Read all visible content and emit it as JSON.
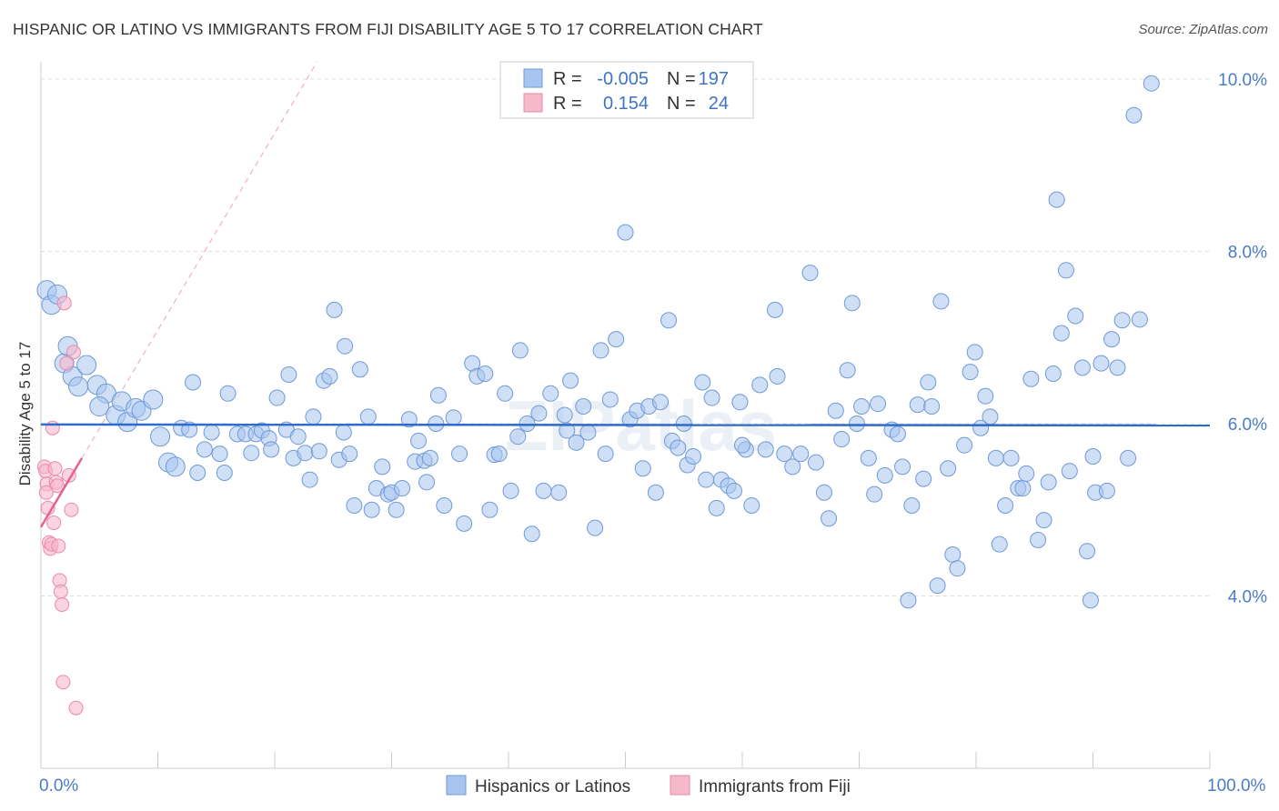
{
  "title": "HISPANIC OR LATINO VS IMMIGRANTS FROM FIJI DISABILITY AGE 5 TO 17 CORRELATION CHART",
  "source": "Source: ZipAtlas.com",
  "watermark": "ZIPatlas",
  "colors": {
    "blue": "#a7c5ee",
    "blue_stroke": "#6f9ad6",
    "blue_line": "#2f6cc9",
    "pink": "#f6b8cb",
    "pink_stroke": "#e98aa9",
    "pink_line": "#e8628f"
  },
  "legend": {
    "rows": [
      {
        "r_label": "R =",
        "r_value": "-0.005",
        "n_label": "N =",
        "n_value": "197"
      },
      {
        "r_label": "R =",
        "r_value": "0.154",
        "n_label": "N =",
        "n_value": "24"
      }
    ]
  },
  "bottom_legend": [
    "Hispanics or Latinos",
    "Immigrants from Fiji"
  ],
  "chart_data": {
    "type": "scatter",
    "xlabel": "",
    "ylabel": "Disability Age 5 to 17",
    "xlim": [
      0,
      100
    ],
    "ylim": [
      2.0,
      10.2
    ],
    "x_tick_labels": [
      "0.0%",
      "100.0%"
    ],
    "y_ticks": [
      4.0,
      6.0,
      8.0,
      10.0
    ],
    "y_tick_labels": [
      "4.0%",
      "6.0%",
      "8.0%",
      "10.0%"
    ],
    "grid": true,
    "series": [
      {
        "name": "Hispanics or Latinos",
        "trend": {
          "x": [
            0,
            100
          ],
          "y": [
            5.99,
            5.98
          ]
        },
        "points": [
          [
            0.5,
            7.55
          ],
          [
            0.9,
            7.38
          ],
          [
            1.4,
            7.5
          ],
          [
            2.0,
            6.7
          ],
          [
            2.3,
            6.9
          ],
          [
            2.7,
            6.55
          ],
          [
            3.2,
            6.43
          ],
          [
            3.9,
            6.68
          ],
          [
            4.8,
            6.45
          ],
          [
            5.6,
            6.35
          ],
          [
            5.0,
            6.2
          ],
          [
            6.4,
            6.1
          ],
          [
            6.9,
            6.26
          ],
          [
            7.4,
            6.02
          ],
          [
            8.1,
            6.18
          ],
          [
            8.6,
            6.15
          ],
          [
            9.6,
            6.28
          ],
          [
            10.2,
            5.85
          ],
          [
            10.9,
            5.55
          ],
          [
            11.5,
            5.5
          ],
          [
            12.0,
            5.95
          ],
          [
            12.7,
            5.93
          ],
          [
            13.0,
            6.48
          ],
          [
            13.4,
            5.43
          ],
          [
            14.0,
            5.7
          ],
          [
            14.6,
            5.9
          ],
          [
            15.3,
            5.65
          ],
          [
            15.7,
            5.43
          ],
          [
            16.0,
            6.35
          ],
          [
            16.8,
            5.88
          ],
          [
            17.5,
            5.88
          ],
          [
            18.0,
            5.66
          ],
          [
            18.4,
            5.88
          ],
          [
            18.9,
            5.92
          ],
          [
            19.5,
            5.83
          ],
          [
            19.7,
            5.7
          ],
          [
            20.2,
            6.3
          ],
          [
            21.0,
            5.93
          ],
          [
            21.2,
            6.57
          ],
          [
            21.6,
            5.6
          ],
          [
            22.0,
            5.85
          ],
          [
            22.6,
            5.66
          ],
          [
            23.0,
            5.35
          ],
          [
            23.3,
            6.08
          ],
          [
            23.8,
            5.68
          ],
          [
            24.2,
            6.5
          ],
          [
            24.7,
            6.55
          ],
          [
            25.1,
            7.32
          ],
          [
            25.5,
            5.58
          ],
          [
            25.9,
            5.9
          ],
          [
            26.4,
            5.65
          ],
          [
            26.8,
            5.05
          ],
          [
            27.3,
            6.63
          ],
          [
            28.0,
            6.08
          ],
          [
            28.3,
            5.0
          ],
          [
            28.7,
            5.25
          ],
          [
            29.2,
            5.5
          ],
          [
            29.7,
            5.18
          ],
          [
            30.0,
            5.2
          ],
          [
            30.4,
            5.0
          ],
          [
            30.9,
            5.25
          ],
          [
            31.5,
            6.05
          ],
          [
            32.0,
            5.56
          ],
          [
            32.3,
            5.8
          ],
          [
            32.8,
            5.57
          ],
          [
            33.3,
            5.6
          ],
          [
            33.8,
            6.0
          ],
          [
            34.0,
            6.33
          ],
          [
            34.5,
            5.05
          ],
          [
            35.3,
            6.07
          ],
          [
            35.8,
            5.65
          ],
          [
            36.2,
            4.84
          ],
          [
            36.9,
            6.7
          ],
          [
            37.3,
            6.55
          ],
          [
            38.0,
            6.58
          ],
          [
            38.4,
            5.0
          ],
          [
            38.8,
            5.64
          ],
          [
            39.2,
            5.65
          ],
          [
            39.7,
            6.35
          ],
          [
            40.2,
            5.22
          ],
          [
            40.8,
            5.85
          ],
          [
            41.0,
            6.85
          ],
          [
            41.6,
            6.0
          ],
          [
            42.0,
            4.72
          ],
          [
            42.6,
            6.12
          ],
          [
            43.0,
            5.22
          ],
          [
            43.6,
            6.35
          ],
          [
            44.3,
            5.2
          ],
          [
            44.8,
            6.1
          ],
          [
            45.3,
            6.5
          ],
          [
            45.8,
            5.78
          ],
          [
            46.4,
            6.2
          ],
          [
            46.8,
            5.9
          ],
          [
            47.4,
            4.79
          ],
          [
            47.9,
            6.85
          ],
          [
            48.3,
            5.65
          ],
          [
            48.7,
            6.28
          ],
          [
            49.2,
            6.98
          ],
          [
            50.0,
            8.22
          ],
          [
            50.4,
            6.05
          ],
          [
            51.0,
            6.15
          ],
          [
            51.5,
            5.48
          ],
          [
            52.0,
            6.2
          ],
          [
            52.6,
            5.2
          ],
          [
            53.0,
            6.25
          ],
          [
            53.7,
            7.2
          ],
          [
            54.0,
            5.8
          ],
          [
            54.5,
            5.72
          ],
          [
            55.0,
            6.0
          ],
          [
            55.3,
            5.52
          ],
          [
            55.8,
            5.62
          ],
          [
            56.6,
            6.48
          ],
          [
            56.9,
            5.35
          ],
          [
            57.4,
            6.3
          ],
          [
            57.8,
            5.02
          ],
          [
            58.2,
            5.35
          ],
          [
            58.8,
            5.28
          ],
          [
            59.3,
            5.22
          ],
          [
            59.8,
            6.25
          ],
          [
            60.3,
            5.7
          ],
          [
            60.8,
            5.05
          ],
          [
            61.5,
            6.45
          ],
          [
            62.0,
            5.7
          ],
          [
            62.8,
            7.32
          ],
          [
            63.0,
            6.55
          ],
          [
            63.6,
            5.65
          ],
          [
            64.3,
            5.5
          ],
          [
            65.0,
            5.65
          ],
          [
            65.8,
            7.75
          ],
          [
            66.3,
            5.55
          ],
          [
            67.0,
            5.2
          ],
          [
            67.4,
            4.9
          ],
          [
            68.0,
            6.15
          ],
          [
            68.5,
            5.82
          ],
          [
            69.0,
            6.62
          ],
          [
            69.4,
            7.4
          ],
          [
            69.8,
            6.0
          ],
          [
            70.2,
            6.2
          ],
          [
            70.8,
            5.6
          ],
          [
            71.3,
            5.18
          ],
          [
            71.6,
            6.23
          ],
          [
            72.2,
            5.4
          ],
          [
            72.8,
            5.93
          ],
          [
            73.3,
            5.88
          ],
          [
            73.7,
            5.5
          ],
          [
            74.2,
            3.95
          ],
          [
            74.5,
            5.05
          ],
          [
            75.0,
            6.22
          ],
          [
            75.5,
            5.36
          ],
          [
            75.9,
            6.48
          ],
          [
            76.2,
            6.2
          ],
          [
            76.7,
            4.12
          ],
          [
            77.0,
            7.42
          ],
          [
            77.6,
            5.48
          ],
          [
            78.0,
            4.48
          ],
          [
            78.4,
            4.32
          ],
          [
            79.0,
            5.75
          ],
          [
            79.5,
            6.6
          ],
          [
            79.9,
            6.83
          ],
          [
            80.4,
            5.95
          ],
          [
            80.8,
            6.32
          ],
          [
            81.2,
            6.08
          ],
          [
            81.7,
            5.6
          ],
          [
            82.0,
            4.6
          ],
          [
            82.5,
            5.05
          ],
          [
            83.0,
            5.6
          ],
          [
            83.6,
            5.25
          ],
          [
            84.0,
            5.25
          ],
          [
            84.3,
            5.42
          ],
          [
            84.7,
            6.52
          ],
          [
            85.3,
            4.65
          ],
          [
            85.8,
            4.88
          ],
          [
            86.2,
            5.32
          ],
          [
            86.6,
            6.58
          ],
          [
            86.9,
            8.6
          ],
          [
            87.3,
            7.05
          ],
          [
            87.7,
            7.78
          ],
          [
            88.0,
            5.45
          ],
          [
            88.5,
            7.25
          ],
          [
            89.1,
            6.65
          ],
          [
            89.5,
            4.52
          ],
          [
            89.8,
            3.95
          ],
          [
            90.2,
            5.2
          ],
          [
            90.7,
            6.7
          ],
          [
            91.2,
            5.22
          ],
          [
            91.6,
            6.98
          ],
          [
            92.1,
            6.65
          ],
          [
            92.5,
            7.2
          ],
          [
            93.0,
            5.6
          ],
          [
            93.5,
            9.58
          ],
          [
            94.0,
            7.21
          ],
          [
            95.0,
            9.95
          ],
          [
            90.0,
            5.62
          ],
          [
            26.0,
            6.9
          ],
          [
            60.0,
            5.75
          ],
          [
            45.0,
            5.92
          ],
          [
            33.0,
            5.32
          ]
        ]
      },
      {
        "name": "Immigrants from Fiji",
        "trend": {
          "x": [
            0,
            3.5
          ],
          "y": [
            4.8,
            5.6
          ]
        },
        "points": [
          [
            0.3,
            5.5
          ],
          [
            0.4,
            5.45
          ],
          [
            0.5,
            5.3
          ],
          [
            0.6,
            5.02
          ],
          [
            0.7,
            4.62
          ],
          [
            0.8,
            4.55
          ],
          [
            0.9,
            4.6
          ],
          [
            1.0,
            5.95
          ],
          [
            1.1,
            4.85
          ],
          [
            1.2,
            5.48
          ],
          [
            1.3,
            5.32
          ],
          [
            1.4,
            5.28
          ],
          [
            1.5,
            4.58
          ],
          [
            1.6,
            4.18
          ],
          [
            1.7,
            4.05
          ],
          [
            1.8,
            3.9
          ],
          [
            1.9,
            3.0
          ],
          [
            2.0,
            7.4
          ],
          [
            2.2,
            6.7
          ],
          [
            2.4,
            5.4
          ],
          [
            2.6,
            5.0
          ],
          [
            2.8,
            6.83
          ],
          [
            3.0,
            2.7
          ],
          [
            0.45,
            5.2
          ]
        ]
      }
    ]
  }
}
